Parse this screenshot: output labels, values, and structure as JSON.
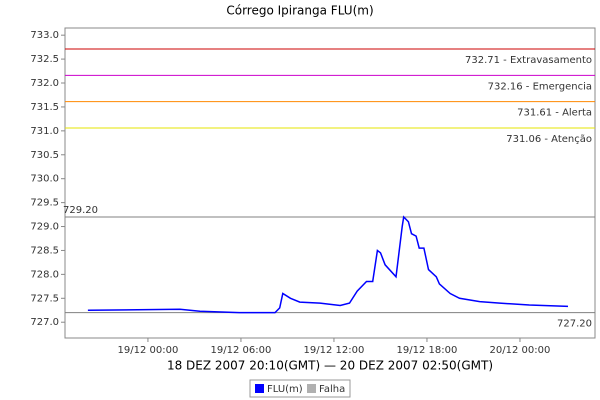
{
  "chart_data": {
    "type": "line",
    "title": "Córrego Ipiranga FLU(m)",
    "x_label": "18 DEZ 2007 20:10(GMT) — 20 DEZ 2007 02:50(GMT)",
    "xlim": [
      -5.35,
      28.84
    ],
    "xticks": [
      {
        "value": 0,
        "label": "19/12 00:00"
      },
      {
        "value": 6,
        "label": "19/12 06:00"
      },
      {
        "value": 12,
        "label": "19/12 12:00"
      },
      {
        "value": 18,
        "label": "19/12 18:00"
      },
      {
        "value": 24,
        "label": "20/12 00:00"
      }
    ],
    "ylim": [
      726.67,
      733.15
    ],
    "yticks": [
      {
        "value": 727,
        "label": "727.0"
      },
      727.5,
      {
        "value": 728,
        "label": "728.0"
      },
      728.5,
      {
        "value": 729,
        "label": "729.0"
      },
      729.5,
      {
        "value": 730,
        "label": "730.0"
      },
      730.5,
      {
        "value": 731,
        "label": "731.0"
      },
      731.5,
      {
        "value": 732,
        "label": "732.0"
      },
      732.5,
      {
        "value": 733,
        "label": "733.0"
      }
    ],
    "grid": false,
    "x": [
      -3.87,
      2.06,
      3.35,
      5.9,
      8.2,
      8.5,
      8.7,
      9.2,
      9.8,
      11.1,
      12.4,
      13.0,
      13.5,
      14.1,
      14.5,
      14.8,
      15.0,
      15.3,
      16.0,
      16.1,
      16.4,
      16.5,
      16.8,
      17.0,
      17.3,
      17.5,
      17.8,
      18.1,
      18.6,
      18.8,
      19.5,
      20.1,
      21.4,
      22.7,
      24.6,
      27.1
    ],
    "series": [
      {
        "name": "FLU(m)",
        "color": "#0000ff",
        "values": [
          727.25,
          727.27,
          727.23,
          727.2,
          727.2,
          727.3,
          727.6,
          727.5,
          727.42,
          727.4,
          727.35,
          727.4,
          727.65,
          727.85,
          727.85,
          728.5,
          728.45,
          728.2,
          727.95,
          728.2,
          729.0,
          729.2,
          729.1,
          728.85,
          728.8,
          728.55,
          728.55,
          728.1,
          727.95,
          727.8,
          727.6,
          727.5,
          727.43,
          727.4,
          727.36,
          727.33
        ]
      },
      {
        "name": "Falha",
        "color": "#b0b0b0",
        "values": [
          null,
          null,
          null,
          null,
          null,
          null,
          null,
          null,
          null,
          null,
          null,
          null,
          null,
          null,
          null,
          null,
          null,
          null,
          null,
          null,
          null,
          null,
          null,
          null,
          null,
          null,
          null,
          null,
          null,
          null,
          null,
          null,
          null,
          null,
          null,
          null
        ]
      }
    ],
    "thresholds": [
      {
        "value": 732.71,
        "label": "732.71 - Extravasamento",
        "color": "#cc0000",
        "side": "right"
      },
      {
        "value": 732.16,
        "label": "732.16 - Emergencia",
        "color": "#cc00cc",
        "side": "right"
      },
      {
        "value": 731.61,
        "label": "731.61 - Alerta",
        "color": "#ff8800",
        "side": "right"
      },
      {
        "value": 731.06,
        "label": "731.06 - Atenção",
        "color": "#e6e600",
        "side": "right"
      },
      {
        "value": 729.2,
        "label": "729.20",
        "color": "#808080",
        "side": "left"
      },
      {
        "value": 727.2,
        "label": "727.20",
        "color": "#808080",
        "side": "right"
      }
    ]
  }
}
